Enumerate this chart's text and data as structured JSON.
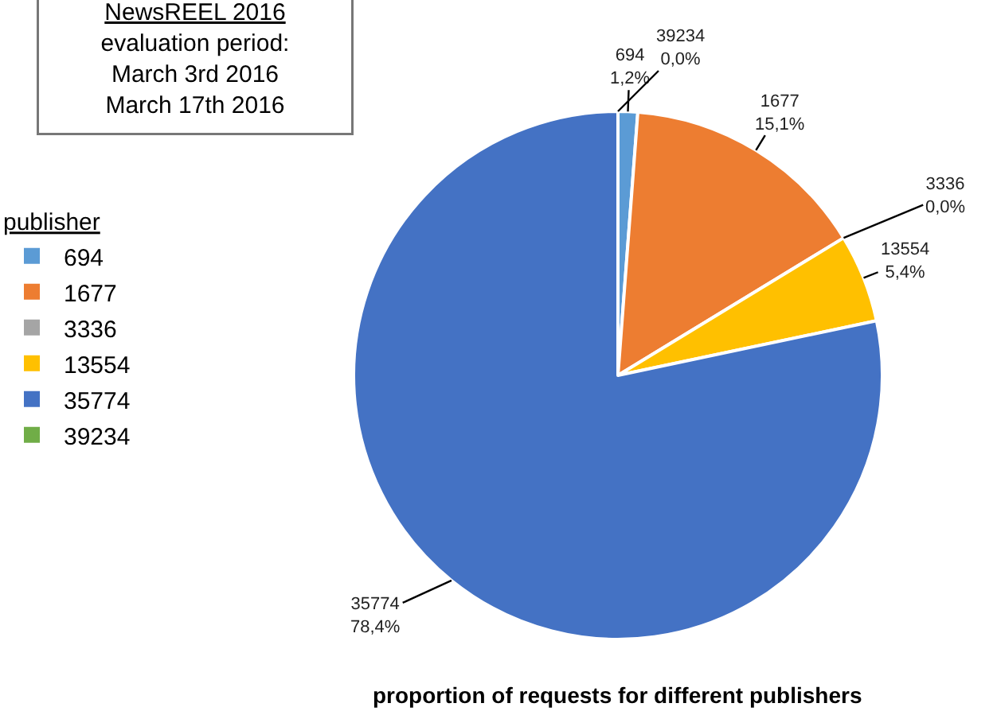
{
  "chart_data": {
    "type": "pie",
    "title": "NewsREEL 2016",
    "subtitle": "evaluation period:\nMarch 3rd 2016\nMarch 17th 2016",
    "legend_title": "publisher",
    "legend": "left",
    "categories": [
      "694",
      "1677",
      "3336",
      "13554",
      "35774",
      "39234"
    ],
    "values": [
      1.2,
      15.1,
      0.0,
      5.4,
      78.4,
      0.0
    ],
    "value_labels": [
      "1,2%",
      "15,1%",
      "0,0%",
      "5,4%",
      "78,4%",
      "0,0%"
    ],
    "colors": [
      "#5b9bd5",
      "#ed7d31",
      "#a5a5a5",
      "#ffc000",
      "#4472c4",
      "#70ad47"
    ],
    "annotations": [
      "proportion of requests for different publishers"
    ]
  }
}
